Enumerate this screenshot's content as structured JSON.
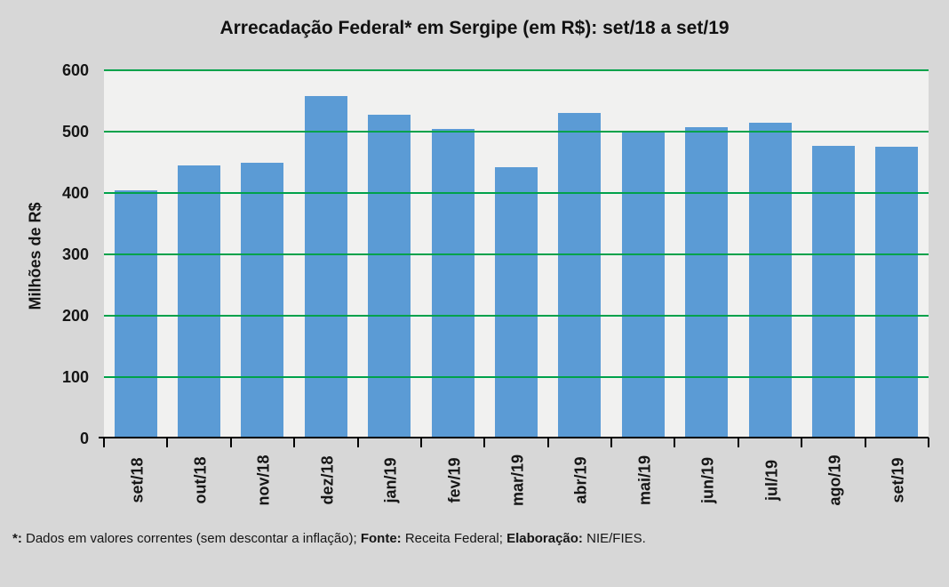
{
  "chart_data": {
    "type": "bar",
    "title": "Arrecadação Federal* em Sergipe (em R$): set/18 a set/19",
    "categories": [
      "set/18",
      "out/18",
      "nov/18",
      "dez/18",
      "jan/19",
      "fev/19",
      "mar/19",
      "abr/19",
      "mai/19",
      "jun/19",
      "jul/19",
      "ago/19",
      "set/19"
    ],
    "values": [
      405,
      445,
      449,
      558,
      527,
      505,
      442,
      530,
      499,
      507,
      514,
      477,
      475
    ],
    "xlabel": "",
    "ylabel": "Milhões de R$",
    "ylim": [
      0,
      600
    ],
    "yticks": [
      0,
      100,
      200,
      300,
      400,
      500,
      600
    ],
    "grid": "horizontal-on",
    "legend": "none",
    "colors": {
      "bar": "#5b9bd5",
      "gridline": "#00a24b",
      "plot_background": "#f1f1f0",
      "page_background": "#d7d7d7",
      "axis": "#000000",
      "text": "#151515"
    }
  },
  "footnote": {
    "segments": [
      {
        "text": "*:",
        "bold": true
      },
      {
        "text": " Dados em valores correntes (sem descontar a inflação); ",
        "bold": false
      },
      {
        "text": "Fonte:",
        "bold": true
      },
      {
        "text": " Receita Federal; ",
        "bold": false
      },
      {
        "text": "Elaboração:",
        "bold": true
      },
      {
        "text": " NIE/FIES.",
        "bold": false
      }
    ]
  }
}
